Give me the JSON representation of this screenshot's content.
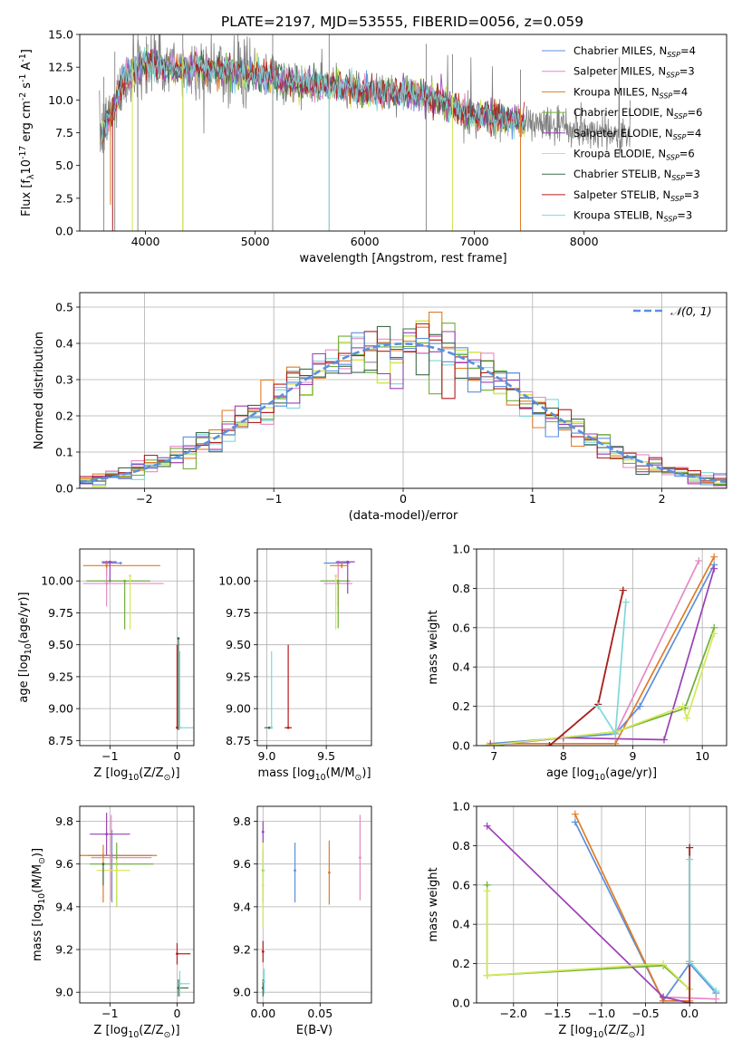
{
  "figure": {
    "title": "PLATE=2197, MJD=53555, FIBERID=0056, z=0.059"
  },
  "models": [
    {
      "label": "Chabrier MILES, N$_{SSP}$=4",
      "label_main": "Chabrier MILES, N",
      "label_sub": "SSP",
      "label_tail": "=4",
      "color": "#5b8fdc"
    },
    {
      "label": "Salpeter MILES, N$_{SSP}$=3",
      "label_main": "Salpeter MILES, N",
      "label_sub": "SSP",
      "label_tail": "=3",
      "color": "#e58ac4"
    },
    {
      "label": "Kroupa MILES, N$_{SSP}$=4",
      "label_main": "Kroupa MILES, N",
      "label_sub": "SSP",
      "label_tail": "=4",
      "color": "#e07b25"
    },
    {
      "label": "Chabrier ELODIE, N$_{SSP}$=6",
      "label_main": "Chabrier ELODIE, N",
      "label_sub": "SSP",
      "label_tail": "=6",
      "color": "#6fae3a"
    },
    {
      "label": "Salpeter ELODIE, N$_{SSP}$=4",
      "label_main": "Salpeter ELODIE, N",
      "label_sub": "SSP",
      "label_tail": "=4",
      "color": "#9b3fb5"
    },
    {
      "label": "Kroupa ELODIE, N$_{SSP}$=6",
      "label_main": "Kroupa ELODIE, N",
      "label_sub": "SSP",
      "label_tail": "=6",
      "color": "#d4e85a"
    },
    {
      "label": "Chabrier STELIB, N$_{SSP}$=3",
      "label_main": "Chabrier STELIB, N",
      "label_sub": "SSP",
      "label_tail": "=3",
      "color": "#3f6b4c"
    },
    {
      "label": "Salpeter STELIB, N$_{SSP}$=3",
      "label_main": "Salpeter STELIB, N",
      "label_sub": "SSP",
      "label_tail": "=3",
      "color": "#b31c1c"
    },
    {
      "label": "Kroupa STELIB, N$_{SSP}$=3",
      "label_main": "Kroupa STELIB, N",
      "label_sub": "SSP",
      "label_tail": "=3",
      "color": "#7fd8d8"
    }
  ],
  "chart_data": [
    {
      "id": "spectrum",
      "type": "line",
      "title": "PLATE=2197, MJD=53555, FIBERID=0056, z=0.059",
      "xlabel": "wavelength [Angstrom, rest frame]",
      "ylabel": "Flux [f$_\\lambda$10$^{-17}$ erg cm$^{-2}$ s$^{-1}$ A$^{-1}$]",
      "xlim": [
        3400,
        9300
      ],
      "ylim": [
        0,
        15
      ],
      "xticks": [
        4000,
        5000,
        6000,
        7000,
        8000
      ],
      "yticks": [
        0.0,
        2.5,
        5.0,
        7.5,
        10.0,
        12.5,
        15.0
      ],
      "grid": false,
      "legend_position": "top-right",
      "data_color": "#808080",
      "continuum": [
        [
          3600,
          7.4
        ],
        [
          3700,
          9.2
        ],
        [
          3800,
          11.6
        ],
        [
          3900,
          12.4
        ],
        [
          4000,
          13.0
        ],
        [
          4100,
          12.7
        ],
        [
          4200,
          12.5
        ],
        [
          4300,
          12.3
        ],
        [
          4500,
          12.5
        ],
        [
          4700,
          12.3
        ],
        [
          4900,
          12.0
        ],
        [
          5100,
          11.8
        ],
        [
          5300,
          11.5
        ],
        [
          5500,
          11.2
        ],
        [
          5700,
          11.0
        ],
        [
          5900,
          10.8
        ],
        [
          6100,
          10.6
        ],
        [
          6300,
          10.5
        ],
        [
          6500,
          10.4
        ],
        [
          6700,
          10.0
        ],
        [
          6900,
          9.0
        ],
        [
          7100,
          8.7
        ],
        [
          7300,
          8.5
        ],
        [
          7430,
          8.3
        ],
        [
          7600,
          8.2
        ],
        [
          7800,
          7.9
        ],
        [
          8000,
          7.7
        ],
        [
          8200,
          7.5
        ],
        [
          8400,
          7.3
        ]
      ],
      "data_dips": [
        [
          3620,
          0
        ],
        [
          3720,
          0
        ],
        [
          3930,
          0
        ],
        [
          4340,
          0
        ],
        [
          5160,
          0
        ],
        [
          5675,
          0
        ],
        [
          6560,
          0
        ],
        [
          6800,
          0
        ],
        [
          7420,
          0
        ]
      ],
      "model_dips": [
        [
          3680,
          2
        ],
        [
          3700,
          0
        ],
        [
          3880,
          0
        ],
        [
          4340,
          0
        ],
        [
          5675,
          0
        ],
        [
          6800,
          0
        ],
        [
          7420,
          0
        ]
      ],
      "noise_end": 8420
    },
    {
      "id": "residuals",
      "type": "histogram",
      "xlabel": "(data-model)/error",
      "ylabel": "Normed distribution",
      "xlim": [
        -2.5,
        2.5
      ],
      "ylim": [
        0,
        0.54
      ],
      "xticks": [
        -2,
        -1,
        0,
        1,
        2
      ],
      "yticks": [
        0.0,
        0.1,
        0.2,
        0.3,
        0.4,
        0.5
      ],
      "grid": true,
      "legend_position": "top-right",
      "legend_label": "$\\mathcal{N}(0, 1)$",
      "legend_text": "𝒩(0, 1)",
      "bins": 50,
      "bin_width": 0.1,
      "gaussian_color": "#5b8fdc"
    },
    {
      "id": "age-vs-Z",
      "type": "scatter",
      "xlabel": "Z [log$_{10}$(Z/Z$_\\odot$)]",
      "ylabel": "age  [log$_{10}$(age/yr)]",
      "xlim": [
        -1.45,
        0.25
      ],
      "ylim": [
        8.71,
        10.25
      ],
      "xticks": [
        -1,
        0
      ],
      "yticks": [
        8.75,
        9.0,
        9.25,
        9.5,
        9.75,
        10.0
      ],
      "grid": true,
      "errorbars": [
        {
          "model": 0,
          "x": -0.84,
          "y": 10.14,
          "xerr": [
            0.28,
            0.0
          ],
          "yerr": [
            0.0,
            0.0
          ]
        },
        {
          "model": 0,
          "x": -1.05,
          "y": 10.14,
          "xerr": [
            0.0,
            0.0
          ],
          "yerr": [
            0.1,
            0.0
          ]
        },
        {
          "model": 1,
          "x": -1.05,
          "y": 9.98,
          "xerr": [
            0.35,
            0.85
          ],
          "yerr": [
            0.18,
            0.18
          ]
        },
        {
          "model": 2,
          "x": -1.05,
          "y": 10.12,
          "xerr": [
            0.35,
            0.8
          ],
          "yerr": [
            0.02,
            0.02
          ]
        },
        {
          "model": 3,
          "x": -1.0,
          "y": 10.0,
          "xerr": [
            0.35,
            0.6
          ],
          "yerr": [
            0.0,
            0.0
          ]
        },
        {
          "model": 3,
          "x": -0.78,
          "y": 10.0,
          "xerr": [
            0.0,
            0.0
          ],
          "yerr": [
            0.38,
            0.0
          ]
        },
        {
          "model": 4,
          "x": -1.0,
          "y": 10.15,
          "xerr": [
            0.12,
            0.1
          ],
          "yerr": [
            0.15,
            0.0
          ]
        },
        {
          "model": 5,
          "x": -0.7,
          "y": 10.04,
          "xerr": [
            0.0,
            0.0
          ],
          "yerr": [
            0.42,
            0.0
          ]
        },
        {
          "model": 6,
          "x": 0.02,
          "y": 9.55,
          "xerr": [
            0.0,
            0.0
          ],
          "yerr": [
            0.72,
            0.0
          ]
        },
        {
          "model": 7,
          "x": 0.0,
          "y": 8.85,
          "xerr": [
            0.0,
            0.0
          ],
          "yerr": [
            0.0,
            0.65
          ]
        },
        {
          "model": 8,
          "x": 0.04,
          "y": 8.85,
          "xerr": [
            0.0,
            0.2
          ],
          "yerr": [
            0.0,
            0.6
          ]
        }
      ]
    },
    {
      "id": "age-vs-mass",
      "type": "scatter",
      "xlabel": "mass [log$_{10}$(M/M$_\\odot$)]",
      "ylabel": "",
      "xlim": [
        8.92,
        9.88
      ],
      "ylim": [
        8.71,
        10.25
      ],
      "xticks": [
        9.0,
        9.5
      ],
      "yticks": [
        8.75,
        9.0,
        9.25,
        9.5,
        9.75,
        10.0
      ],
      "grid": true,
      "errorbars": [
        {
          "model": 0,
          "x": 9.6,
          "y": 10.14,
          "xerr": [
            0.12,
            0.1
          ],
          "yerr": [
            0.0,
            0.0
          ]
        },
        {
          "model": 1,
          "x": 9.6,
          "y": 9.98,
          "xerr": [
            0.12,
            0.12
          ],
          "yerr": [
            0.18,
            0.18
          ]
        },
        {
          "model": 2,
          "x": 9.63,
          "y": 10.12,
          "xerr": [
            0.1,
            0.05
          ],
          "yerr": [
            0.02,
            0.02
          ]
        },
        {
          "model": 3,
          "x": 9.6,
          "y": 10.0,
          "xerr": [
            0.15,
            0.1
          ],
          "yerr": [
            0.37,
            0.0
          ]
        },
        {
          "model": 4,
          "x": 9.68,
          "y": 10.15,
          "xerr": [
            0.1,
            0.06
          ],
          "yerr": [
            0.25,
            0.0
          ]
        },
        {
          "model": 5,
          "x": 9.58,
          "y": 10.04,
          "xerr": [
            0.0,
            0.0
          ],
          "yerr": [
            0.42,
            0.0
          ]
        },
        {
          "model": 6,
          "x": 9.02,
          "y": 8.85,
          "xerr": [
            0.04,
            0.0
          ],
          "yerr": [
            0.0,
            0.0
          ]
        },
        {
          "model": 7,
          "x": 9.18,
          "y": 8.85,
          "xerr": [
            0.03,
            0.03
          ],
          "yerr": [
            0.0,
            0.65
          ]
        },
        {
          "model": 8,
          "x": 9.04,
          "y": 8.85,
          "xerr": [
            0.0,
            0.0
          ],
          "yerr": [
            0.0,
            0.6
          ]
        }
      ]
    },
    {
      "id": "weight-vs-age",
      "type": "line",
      "xlabel": "age  [log$_{10}$(age/yr)]",
      "ylabel": "mass weight",
      "xlim": [
        6.75,
        10.35
      ],
      "ylim": [
        0,
        1.0
      ],
      "xticks": [
        7,
        8,
        9,
        10
      ],
      "yticks": [
        0.0,
        0.2,
        0.4,
        0.6,
        0.8,
        1.0
      ],
      "grid": true,
      "series": [
        {
          "model": 0,
          "x": [
            6.95,
            8.75,
            9.1,
            10.17
          ],
          "y": [
            0.01,
            0.06,
            0.2,
            0.92
          ]
        },
        {
          "model": 1,
          "x": 8.75,
          "x_list": [
            8.75,
            9.95
          ],
          "y": [
            0.06,
            0.94
          ]
        },
        {
          "model": 2,
          "x": [
            6.95,
            8.75,
            10.17
          ],
          "y": [
            0.01,
            0.01,
            0.96
          ]
        },
        {
          "model": 3,
          "x": [
            6.9,
            8.75,
            9.75,
            10.17
          ],
          "y": [
            0.0,
            0.07,
            0.19,
            0.6
          ]
        },
        {
          "model": 4,
          "x": [
            6.95,
            8.0,
            9.45,
            10.17
          ],
          "y": [
            0.0,
            0.04,
            0.03,
            0.9
          ]
        },
        {
          "model": 5,
          "x": [
            6.9,
            8.75,
            9.72,
            9.78,
            10.17
          ],
          "y": [
            0.0,
            0.07,
            0.2,
            0.14,
            0.57
          ]
        },
        {
          "model": 6,
          "x": [
            7.8,
            8.5,
            8.86
          ],
          "y": [
            0.0,
            0.21,
            0.79
          ]
        },
        {
          "model": 7,
          "x": [
            7.8,
            8.5,
            8.86
          ],
          "y": [
            0.0,
            0.21,
            0.79
          ]
        },
        {
          "model": 8,
          "x": [
            8.5,
            8.75,
            8.9
          ],
          "y": [
            0.2,
            0.06,
            0.73
          ]
        }
      ]
    },
    {
      "id": "mass-vs-Z",
      "type": "scatter",
      "xlabel": "Z [log$_{10}$(Z/Z$_\\odot$)]",
      "ylabel": "mass [log$_{10}$(M/M$_\\odot$)]",
      "xlim": [
        -1.45,
        0.25
      ],
      "ylim": [
        8.95,
        9.87
      ],
      "xticks": [
        -1,
        0
      ],
      "yticks": [
        9.0,
        9.2,
        9.4,
        9.6,
        9.8
      ],
      "grid": true,
      "errorbars": [
        {
          "model": 0,
          "x": -0.97,
          "y": 9.64,
          "xerr": [
            0.35,
            0.6
          ],
          "yerr": [
            0.22,
            0.12
          ]
        },
        {
          "model": 1,
          "x": -0.98,
          "y": 9.63,
          "xerr": [
            0.3,
            0.6
          ],
          "yerr": [
            0.2,
            0.2
          ]
        },
        {
          "model": 2,
          "x": -1.1,
          "y": 9.64,
          "xerr": [
            0.35,
            0.8
          ],
          "yerr": [
            0.22,
            0.05
          ]
        },
        {
          "model": 3,
          "x": -0.9,
          "y": 9.6,
          "xerr": [
            0.4,
            0.55
          ],
          "yerr": [
            0.2,
            0.1
          ]
        },
        {
          "model": 4,
          "x": -1.05,
          "y": 9.74,
          "xerr": [
            0.25,
            0.35
          ],
          "yerr": [
            0.1,
            0.1
          ]
        },
        {
          "model": 5,
          "x": -0.9,
          "y": 9.57,
          "xerr": [
            0.3,
            0.2
          ],
          "yerr": [
            0.17,
            0.05
          ]
        },
        {
          "model": 6,
          "x": -1.1,
          "y": 9.6,
          "xerr": [
            0.0,
            0.0
          ],
          "yerr": [
            0.1,
            0.0
          ]
        },
        {
          "model": 6,
          "x": 0.02,
          "y": 9.02,
          "xerr": [
            0.0,
            0.15
          ],
          "yerr": [
            0.04,
            0.04
          ]
        },
        {
          "model": 7,
          "x": 0.0,
          "y": 9.18,
          "xerr": [
            0.0,
            0.2
          ],
          "yerr": [
            0.05,
            0.05
          ]
        },
        {
          "model": 8,
          "x": 0.04,
          "y": 9.04,
          "xerr": [
            0.0,
            0.15
          ],
          "yerr": [
            0.06,
            0.06
          ]
        }
      ]
    },
    {
      "id": "mass-vs-ebv",
      "type": "scatter",
      "xlabel": "E(B-V)",
      "ylabel": "",
      "xlim": [
        -0.005,
        0.095
      ],
      "ylim": [
        8.95,
        9.87
      ],
      "xticks": [
        0.0,
        0.05
      ],
      "yticks": [
        9.0,
        9.2,
        9.4,
        9.6,
        9.8
      ],
      "grid": true,
      "errorbars": [
        {
          "model": 0,
          "x": 0.028,
          "y": 9.57,
          "yerr": [
            0.15,
            0.13
          ]
        },
        {
          "model": 1,
          "x": 0.085,
          "y": 9.63,
          "yerr": [
            0.2,
            0.2
          ]
        },
        {
          "model": 2,
          "x": 0.058,
          "y": 9.56,
          "yerr": [
            0.15,
            0.15
          ]
        },
        {
          "model": 3,
          "x": 0.0,
          "y": 9.57,
          "yerr": [
            0.15,
            0.1
          ]
        },
        {
          "model": 4,
          "x": 0.0,
          "y": 9.75,
          "yerr": [
            0.05,
            0.05
          ]
        },
        {
          "model": 5,
          "x": 0.0,
          "y": 9.5,
          "yerr": [
            0.2,
            0.2
          ]
        },
        {
          "model": 6,
          "x": 0.0,
          "y": 9.02,
          "yerr": [
            0.04,
            0.04
          ]
        },
        {
          "model": 7,
          "x": 0.0,
          "y": 9.19,
          "yerr": [
            0.05,
            0.05
          ]
        },
        {
          "model": 8,
          "x": 0.001,
          "y": 9.05,
          "yerr": [
            0.06,
            0.06
          ]
        }
      ]
    },
    {
      "id": "weight-vs-Z",
      "type": "line",
      "xlabel": "Z [log$_{10}$(Z/Z$_\\odot$)]",
      "ylabel": "mass weight",
      "xlim": [
        -2.42,
        0.42
      ],
      "ylim": [
        0,
        1.0
      ],
      "xticks": [
        -2.0,
        -1.5,
        -1.0,
        -0.5,
        0.0
      ],
      "yticks": [
        0.0,
        0.2,
        0.4,
        0.6,
        0.8,
        1.0
      ],
      "grid": true,
      "series": [
        {
          "model": 0,
          "x": [
            -1.3,
            -0.3,
            0.0,
            0.3
          ],
          "y": [
            0.92,
            0.01,
            0.2,
            0.05
          ]
        },
        {
          "model": 1,
          "x": [
            -0.3,
            0.3
          ],
          "y": [
            0.03,
            0.02
          ]
        },
        {
          "model": 2,
          "x": [
            -1.3,
            -0.3,
            0.0
          ],
          "y": [
            0.96,
            0.01,
            0.01
          ]
        },
        {
          "model": 3,
          "x": [
            -2.3,
            -2.3,
            -0.3,
            0.0
          ],
          "y": [
            0.6,
            0.14,
            0.19,
            0.07
          ]
        },
        {
          "model": 4,
          "x": [
            -2.3,
            -0.3,
            0.0
          ],
          "y": [
            0.9,
            0.03,
            0.0
          ]
        },
        {
          "model": 5,
          "x": [
            -2.3,
            -2.3,
            -0.3,
            0.0
          ],
          "y": [
            0.57,
            0.14,
            0.2,
            0.07
          ]
        },
        {
          "model": 6,
          "x": [
            0.0,
            0.0,
            0.0
          ],
          "y": [
            0.0,
            0.21,
            0.79
          ]
        },
        {
          "model": 7,
          "x": [
            0.0,
            0.0,
            0.0
          ],
          "y": [
            0.0,
            0.21,
            0.79
          ]
        },
        {
          "model": 8,
          "x": [
            0.0,
            0.0,
            0.3
          ],
          "y": [
            0.73,
            0.21,
            0.06
          ]
        }
      ]
    }
  ]
}
